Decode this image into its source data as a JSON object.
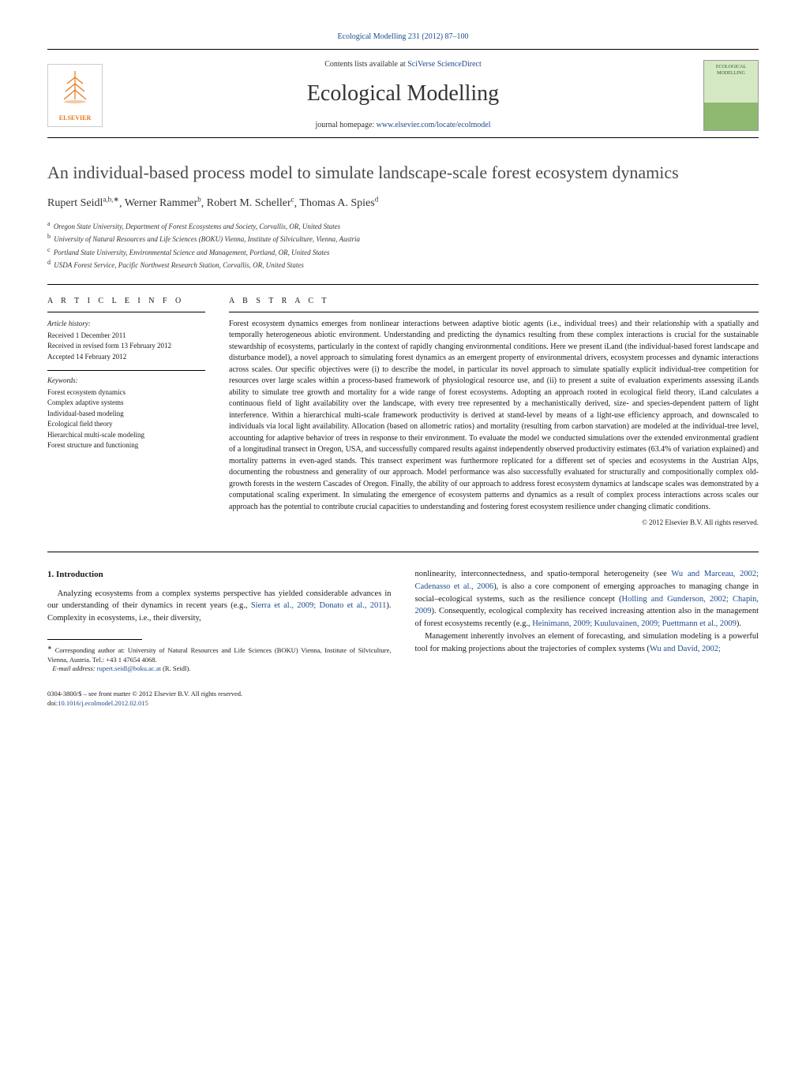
{
  "journal_ref": {
    "text_before": "",
    "link_text": "Ecological Modelling 231 (2012) 87–100",
    "link_color": "#1a4b8c"
  },
  "contents_line": {
    "prefix": "Contents lists available at ",
    "link": "SciVerse ScienceDirect"
  },
  "journal_name": "Ecological Modelling",
  "homepage_line": {
    "prefix": "journal homepage: ",
    "link": "www.elsevier.com/locate/ecolmodel"
  },
  "publisher_logo_text": "ELSEVIER",
  "cover_thumb_text": "ECOLOGICAL MODELLING",
  "title": "An individual-based process model to simulate landscape-scale forest ecosystem dynamics",
  "authors_html": "Rupert Seidl",
  "authors": [
    {
      "name": "Rupert Seidl",
      "sup": "a,b,∗"
    },
    {
      "name": "Werner Rammer",
      "sup": "b"
    },
    {
      "name": "Robert M. Scheller",
      "sup": "c"
    },
    {
      "name": "Thomas A. Spies",
      "sup": "d"
    }
  ],
  "affiliations": [
    {
      "sup": "a",
      "text": "Oregon State University, Department of Forest Ecosystems and Society, Corvallis, OR, United States"
    },
    {
      "sup": "b",
      "text": "University of Natural Resources and Life Sciences (BOKU) Vienna, Institute of Silviculture, Vienna, Austria"
    },
    {
      "sup": "c",
      "text": "Portland State University, Environmental Science and Management, Portland, OR, United States"
    },
    {
      "sup": "d",
      "text": "USDA Forest Service, Pacific Northwest Research Station, Corvallis, OR, United States"
    }
  ],
  "article_info_heading": "a r t i c l e   i n f o",
  "abstract_heading": "a b s t r a c t",
  "history_label": "Article history:",
  "history": [
    "Received 1 December 2011",
    "Received in revised form 13 February 2012",
    "Accepted 14 February 2012"
  ],
  "keywords_label": "Keywords:",
  "keywords": [
    "Forest ecosystem dynamics",
    "Complex adaptive systems",
    "Individual-based modeling",
    "Ecological field theory",
    "Hierarchical multi-scale modeling",
    "Forest structure and functioning"
  ],
  "abstract": "Forest ecosystem dynamics emerges from nonlinear interactions between adaptive biotic agents (i.e., individual trees) and their relationship with a spatially and temporally heterogeneous abiotic environment. Understanding and predicting the dynamics resulting from these complex interactions is crucial for the sustainable stewardship of ecosystems, particularly in the context of rapidly changing environmental conditions. Here we present iLand (the individual-based forest landscape and disturbance model), a novel approach to simulating forest dynamics as an emergent property of environmental drivers, ecosystem processes and dynamic interactions across scales. Our specific objectives were (i) to describe the model, in particular its novel approach to simulate spatially explicit individual-tree competition for resources over large scales within a process-based framework of physiological resource use, and (ii) to present a suite of evaluation experiments assessing iLands ability to simulate tree growth and mortality for a wide range of forest ecosystems. Adopting an approach rooted in ecological field theory, iLand calculates a continuous field of light availability over the landscape, with every tree represented by a mechanistically derived, size- and species-dependent pattern of light interference. Within a hierarchical multi-scale framework productivity is derived at stand-level by means of a light-use efficiency approach, and downscaled to individuals via local light availability. Allocation (based on allometric ratios) and mortality (resulting from carbon starvation) are modeled at the individual-tree level, accounting for adaptive behavior of trees in response to their environment. To evaluate the model we conducted simulations over the extended environmental gradient of a longitudinal transect in Oregon, USA, and successfully compared results against independently observed productivity estimates (63.4% of variation explained) and mortality patterns in even-aged stands. This transect experiment was furthermore replicated for a different set of species and ecosystems in the Austrian Alps, documenting the robustness and generality of our approach. Model performance was also successfully evaluated for structurally and compositionally complex old-growth forests in the western Cascades of Oregon. Finally, the ability of our approach to address forest ecosystem dynamics at landscape scales was demonstrated by a computational scaling experiment. In simulating the emergence of ecosystem patterns and dynamics as a result of complex process interactions across scales our approach has the potential to contribute crucial capacities to understanding and fostering forest ecosystem resilience under changing climatic conditions.",
  "copyright": "© 2012 Elsevier B.V. All rights reserved.",
  "section1_heading": "1.  Introduction",
  "body_left_p1_pre": "Analyzing ecosystems from a complex systems perspective has yielded considerable advances in our understanding of their dynamics in recent years (e.g., ",
  "body_left_cite1": "Sierra et al., 2009; Donato et al., 2011",
  "body_left_p1_post": "). Complexity in ecosystems, i.e., their diversity,",
  "body_right_p1_pre": "nonlinearity, interconnectedness, and spatio-temporal heterogeneity (see ",
  "body_right_cite1": "Wu and Marceau, 2002; Cadenasso et al., 2006",
  "body_right_p1_mid1": "), is also a core component of emerging approaches to managing change in social–ecological systems, such as the resilience concept (",
  "body_right_cite2": "Holling and Gunderson, 2002; Chapin, 2009",
  "body_right_p1_mid2": "). Consequently, ecological complexity has received increasing attention also in the management of forest ecosystems recently (e.g., ",
  "body_right_cite3": "Heinimann, 2009; Kuuluvainen, 2009; Puettmann et al., 2009",
  "body_right_p1_post": ").",
  "body_right_p2_pre": "Management inherently involves an element of forecasting, and simulation modeling is a powerful tool for making projections about the trajectories of complex systems (",
  "body_right_cite4": "Wu and David, 2002;",
  "footnote_corr_label": "∗",
  "footnote_corr": "Corresponding author at: University of Natural Resources and Life Sciences (BOKU) Vienna, Institute of Silviculture, Vienna, Austria. Tel.: +43 1 47654 4068.",
  "footnote_email_label": "E-mail address:",
  "footnote_email": "rupert.seidl@boku.ac.at",
  "footnote_email_who": "(R. Seidl).",
  "doi_line1": "0304-3800/$ – see front matter © 2012 Elsevier B.V. All rights reserved.",
  "doi_line2_prefix": "doi:",
  "doi_line2_link": "10.1016/j.ecolmodel.2012.02.015"
}
